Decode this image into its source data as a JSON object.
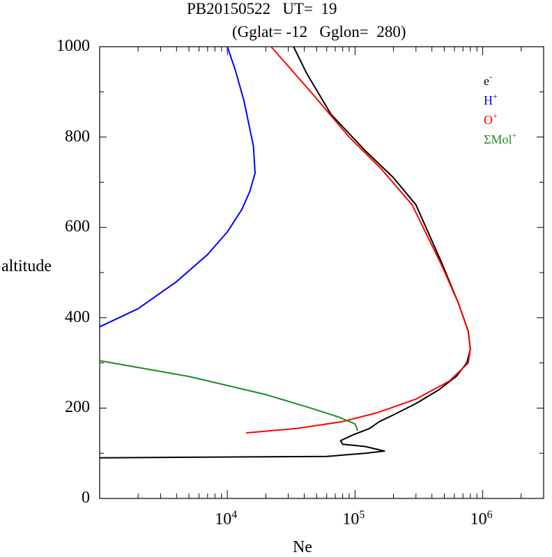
{
  "chart_data": {
    "type": "line",
    "title": "PB20150522   UT=  19",
    "subtitle": "(Gglat= -12   Gglon=  280)",
    "xlabel": "Ne",
    "ylabel": "altitude",
    "xscale": "log",
    "xlim": [
      1000,
      3000000
    ],
    "ylim": [
      0,
      1000
    ],
    "x_tick_labels": [
      {
        "base": "10",
        "exp": "4",
        "value": 10000
      },
      {
        "base": "10",
        "exp": "5",
        "value": 100000
      },
      {
        "base": "10",
        "exp": "6",
        "value": 1000000
      }
    ],
    "y_tick_labels": [
      "0",
      "200",
      "400",
      "600",
      "800",
      "1000"
    ],
    "y_tick_values": [
      0,
      200,
      400,
      600,
      800,
      1000
    ],
    "legend_position": "top-right",
    "series": [
      {
        "name": "e",
        "sup": "-",
        "color": "#000000",
        "points": [
          [
            1000,
            90
          ],
          [
            60000,
            93
          ],
          [
            120000,
            100
          ],
          [
            170000,
            105
          ],
          [
            120000,
            115
          ],
          [
            80000,
            120
          ],
          [
            77000,
            128
          ],
          [
            95000,
            140
          ],
          [
            130000,
            155
          ],
          [
            155000,
            170
          ],
          [
            200000,
            185
          ],
          [
            300000,
            210
          ],
          [
            450000,
            240
          ],
          [
            620000,
            270
          ],
          [
            750000,
            300
          ],
          [
            800000,
            330
          ],
          [
            770000,
            370
          ],
          [
            650000,
            430
          ],
          [
            480000,
            520
          ],
          [
            300000,
            650
          ],
          [
            200000,
            710
          ],
          [
            120000,
            770
          ],
          [
            65000,
            850
          ],
          [
            42000,
            940
          ],
          [
            33000,
            1000
          ]
        ]
      },
      {
        "name": "H",
        "sup": "+",
        "color": "#0000ff",
        "points": [
          [
            1000,
            380
          ],
          [
            2000,
            420
          ],
          [
            4000,
            480
          ],
          [
            7000,
            540
          ],
          [
            10000,
            590
          ],
          [
            13000,
            640
          ],
          [
            15000,
            680
          ],
          [
            16500,
            720
          ],
          [
            16000,
            780
          ],
          [
            13500,
            880
          ],
          [
            11500,
            950
          ],
          [
            10000,
            1000
          ]
        ]
      },
      {
        "name": "O",
        "sup": "+",
        "color": "#ff0000",
        "points": [
          [
            14000,
            145
          ],
          [
            35000,
            155
          ],
          [
            80000,
            170
          ],
          [
            150000,
            190
          ],
          [
            300000,
            220
          ],
          [
            550000,
            260
          ],
          [
            770000,
            300
          ],
          [
            800000,
            330
          ],
          [
            770000,
            370
          ],
          [
            650000,
            430
          ],
          [
            470000,
            520
          ],
          [
            280000,
            650
          ],
          [
            160000,
            730
          ],
          [
            90000,
            800
          ],
          [
            45000,
            900
          ],
          [
            22000,
            1000
          ]
        ]
      },
      {
        "name": "ΣMol",
        "sup": "+",
        "color": "#1e8c1e",
        "points": [
          [
            1000,
            305
          ],
          [
            5000,
            270
          ],
          [
            20000,
            230
          ],
          [
            45000,
            200
          ],
          [
            75000,
            180
          ],
          [
            100000,
            165
          ],
          [
            105000,
            150
          ]
        ]
      }
    ]
  }
}
